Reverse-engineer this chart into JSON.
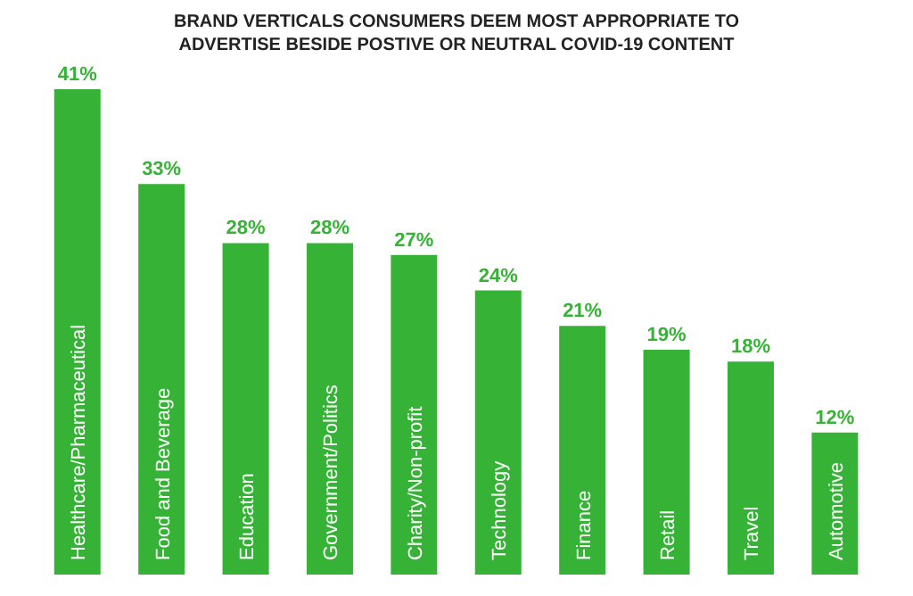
{
  "chart_data": {
    "type": "bar",
    "title": "BRAND VERTICALS CONSUMERS DEEM MOST APPROPRIATE TO ADVERTISE BESIDE POSTIVE OR NEUTRAL COVID-19 CONTENT",
    "categories": [
      "Healthcare/Pharmaceutical",
      "Food and Beverage",
      "Education",
      "Government/Politics",
      "Charity/Non-profit",
      "Technology",
      "Finance",
      "Retail",
      "Travel",
      "Automotive"
    ],
    "values": [
      41,
      33,
      28,
      28,
      27,
      24,
      21,
      19,
      18,
      12
    ],
    "value_labels": [
      "41%",
      "33%",
      "28%",
      "28%",
      "27%",
      "24%",
      "21%",
      "19%",
      "18%",
      "12%"
    ],
    "color": "#36b336",
    "grid": false
  }
}
